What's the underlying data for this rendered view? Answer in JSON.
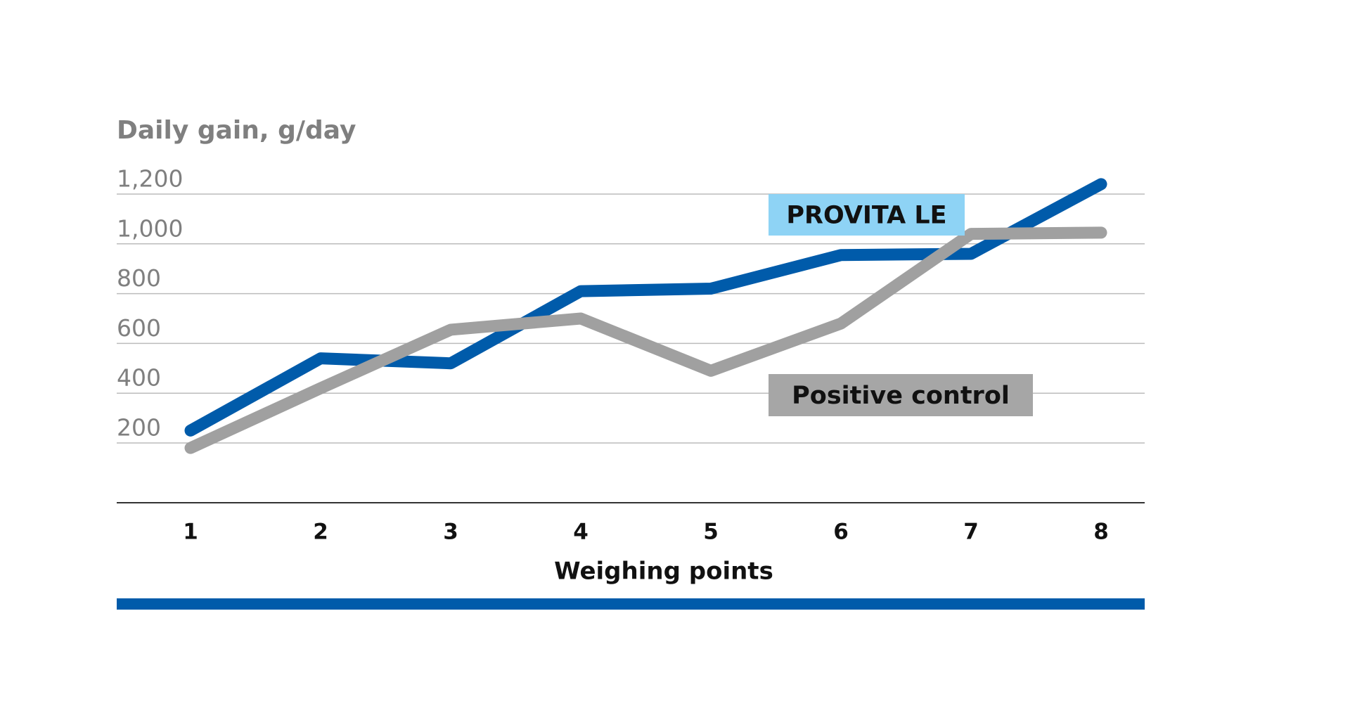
{
  "chart_data": {
    "type": "line",
    "y_label": "Daily gain, g/day",
    "x_label": "Weighing points",
    "categories": [
      "1",
      "2",
      "3",
      "4",
      "5",
      "6",
      "7",
      "8"
    ],
    "series": [
      {
        "name": "PROVITA LE",
        "color": "#005baa",
        "label_color": "#8ed3f5",
        "values": [
          250,
          540,
          520,
          810,
          820,
          955,
          960,
          1240
        ]
      },
      {
        "name": "Positive control",
        "color": "#a0a0a0",
        "label_color": "#a6a6a6",
        "values": [
          180,
          420,
          655,
          700,
          490,
          680,
          1040,
          1045
        ]
      }
    ],
    "ylim": [
      -40,
      1200
    ],
    "yticks": [
      200,
      400,
      600,
      800,
      {
        "value": 1000,
        "label": "1,000"
      },
      {
        "value": 1200,
        "label": "1,200"
      }
    ],
    "grid": true
  }
}
